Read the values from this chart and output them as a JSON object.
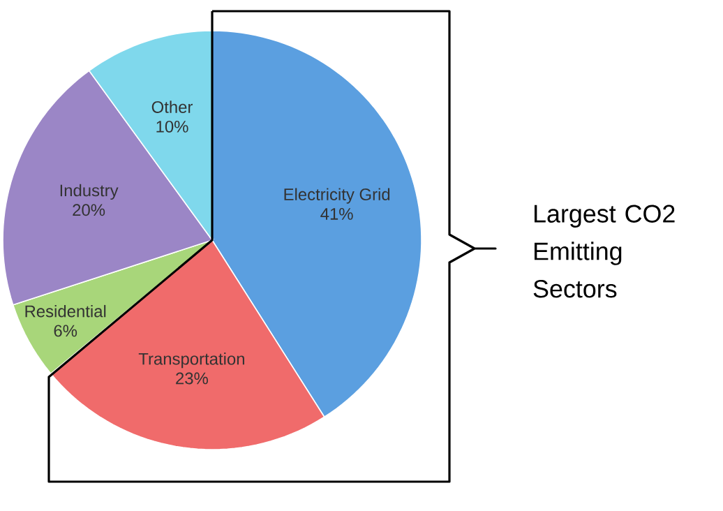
{
  "chart_data": {
    "type": "pie",
    "categories": [
      "Electricity Grid",
      "Transportation",
      "Residential",
      "Industry",
      "Other"
    ],
    "values": [
      41,
      23,
      6,
      20,
      10
    ],
    "value_labels": [
      "41%",
      "23%",
      "6%",
      "20%",
      "10%"
    ],
    "colors": [
      "#5b9fe0",
      "#f06b6b",
      "#a8d67a",
      "#9b86c6",
      "#7fd8ec"
    ],
    "annotations": [
      "Largest CO2 Emitting Sectors"
    ]
  }
}
